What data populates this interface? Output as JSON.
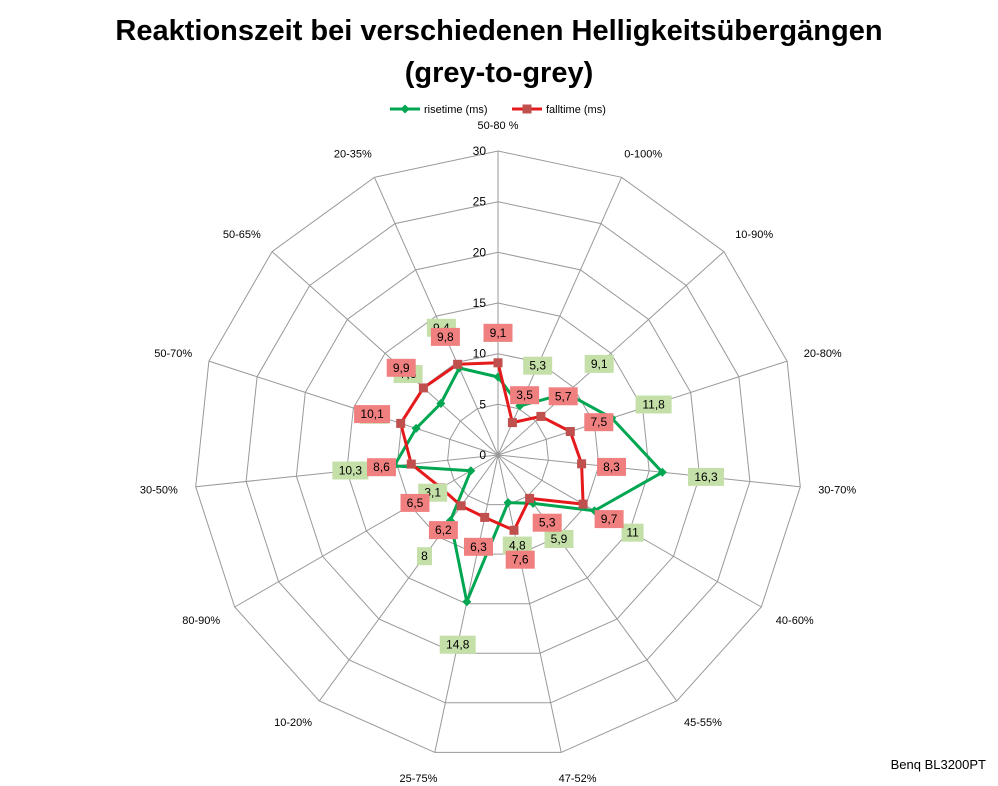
{
  "title": {
    "line1": "Reaktionszeit bei verschiedenen Helligkeitsübergängen",
    "line2": "(grey-to-grey)"
  },
  "footer_note": "Benq BL3200PT",
  "colors": {
    "rise": "#00a651",
    "fall": "#e41a1c",
    "fall_marker": "#c0504d",
    "rise_label_bg": "#c4e0a8",
    "fall_label_bg": "#f08080",
    "grid": "#999999"
  },
  "chart_data": {
    "type": "radar",
    "categories": [
      "50-80 %",
      "0-100%",
      "10-90%",
      "20-80%",
      "30-70%",
      "40-60%",
      "45-55%",
      "47-52%",
      "25-75%",
      "10-20%",
      "80-90%",
      "30-50%",
      "50-70%",
      "50-65%",
      "20-35%"
    ],
    "rlim": [
      0,
      30
    ],
    "rticks": [
      0,
      5,
      10,
      15,
      20,
      25,
      30
    ],
    "grid": true,
    "legend_position": "top",
    "series": [
      {
        "name": "risetime (ms)",
        "marker": "diamond",
        "values": [
          7.7,
          5.3,
          9.1,
          11.8,
          16.3,
          11,
          5.9,
          4.8,
          14.8,
          8,
          3.1,
          10.3,
          8.5,
          7.6,
          9.4
        ],
        "labels": [
          "7,7",
          "5,3",
          "9,1",
          "11,8",
          "16,3",
          "11",
          "5,9",
          "4,8",
          "14,8",
          "8",
          "3,1",
          "10,3",
          "8,5",
          "7,6",
          "9,4"
        ]
      },
      {
        "name": "falltime (ms)",
        "marker": "square",
        "values": [
          9.1,
          3.5,
          5.7,
          7.5,
          8.3,
          9.7,
          5.3,
          7.6,
          6.3,
          6.2,
          6.5,
          8.6,
          10.1,
          9.9,
          9.8
        ],
        "labels": [
          "9,1",
          "3,5",
          "5,7",
          "7,5",
          "8,3",
          "9,7",
          "5,3",
          "7,6",
          "6,3",
          "6,2",
          "6,5",
          "8,6",
          "10,1",
          "9,9",
          "9,8"
        ]
      }
    ]
  }
}
